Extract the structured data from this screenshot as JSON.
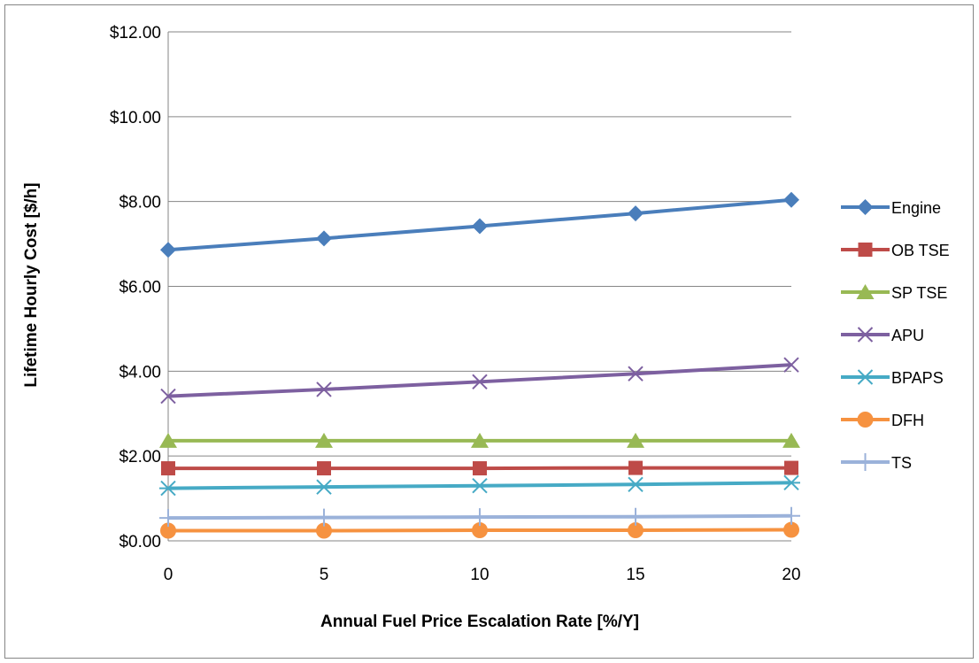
{
  "chart_data": {
    "type": "line",
    "title": "",
    "xlabel": "Annual Fuel Price Escalation Rate [%/Y]",
    "ylabel": "Lifetime Hourly Cost [$/h]",
    "x": [
      0,
      5,
      10,
      15,
      20
    ],
    "x_tick_labels": [
      "0",
      "5",
      "10",
      "15",
      "20"
    ],
    "ylim": [
      0,
      12
    ],
    "y_tick_labels": [
      "$0.00",
      "$2.00",
      "$4.00",
      "$6.00",
      "$8.00",
      "$10.00",
      "$12.00"
    ],
    "grid": "horizontal",
    "legend_position": "right",
    "series": [
      {
        "name": "Engine",
        "values": [
          6.86,
          7.13,
          7.42,
          7.72,
          8.04
        ],
        "color": "#4a7ebb",
        "marker": "diamond"
      },
      {
        "name": "OB TSE",
        "values": [
          1.71,
          1.71,
          1.71,
          1.72,
          1.72
        ],
        "color": "#be4b48",
        "marker": "square"
      },
      {
        "name": "SP TSE",
        "values": [
          2.36,
          2.36,
          2.36,
          2.36,
          2.36
        ],
        "color": "#98b954",
        "marker": "triangle"
      },
      {
        "name": "APU",
        "values": [
          3.41,
          3.57,
          3.75,
          3.94,
          4.15
        ],
        "color": "#7d60a0",
        "marker": "x"
      },
      {
        "name": "BPAPS",
        "values": [
          1.24,
          1.27,
          1.3,
          1.33,
          1.37
        ],
        "color": "#46aac5",
        "marker": "star"
      },
      {
        "name": "DFH",
        "values": [
          0.24,
          0.24,
          0.25,
          0.25,
          0.26
        ],
        "color": "#f69240",
        "marker": "circle"
      },
      {
        "name": "TS",
        "values": [
          0.54,
          0.55,
          0.56,
          0.57,
          0.59
        ],
        "color": "#9bb2da",
        "marker": "plus"
      }
    ]
  }
}
